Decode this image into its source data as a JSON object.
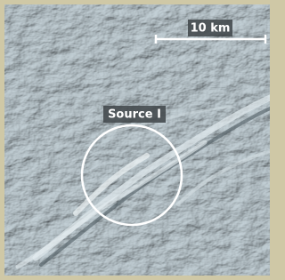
{
  "annotations": {
    "scale_label": "10 km",
    "feature_label": "Source I"
  }
}
